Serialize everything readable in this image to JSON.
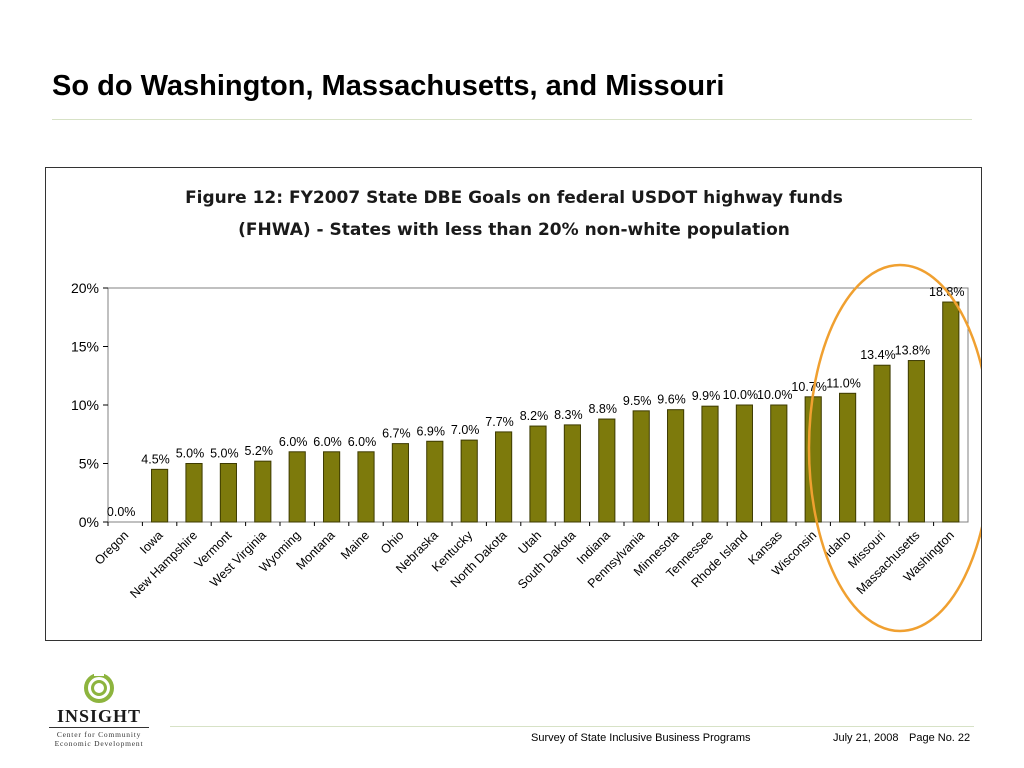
{
  "slide": {
    "title": "So do Washington, Massachusetts, and Missouri"
  },
  "colors": {
    "bar_fill": "#7d7a0c",
    "bar_stroke": "#3c3a00",
    "highlight_ellipse": "#f0a030",
    "title_rule": "#d7e2c6",
    "logo_green": "#8db43e"
  },
  "logo": {
    "name": "INSIGHT",
    "sub_line1": "Center for Community",
    "sub_line2": "Economic Development"
  },
  "footer": {
    "survey": "Survey of State Inclusive Business Programs",
    "date": "July 21, 2008",
    "page": "Page No. 22"
  },
  "chart_data": {
    "type": "bar",
    "title_line1": "Figure 12: FY2007 State DBE Goals on federal USDOT highway funds",
    "title_line2": "(FHWA) - States with less than 20% non-white population",
    "xlabel": "",
    "ylabel": "",
    "ylim": [
      0,
      20
    ],
    "yticks": [
      {
        "value": 0,
        "label": "0%"
      },
      {
        "value": 5,
        "label": "5%"
      },
      {
        "value": 10,
        "label": "10%"
      },
      {
        "value": 15,
        "label": "15%"
      },
      {
        "value": 20,
        "label": "20%"
      }
    ],
    "grid": false,
    "legend": "none",
    "categories": [
      "Oregon",
      "Iowa",
      "New Hampshire",
      "Vermont",
      "West Virginia",
      "Wyoming",
      "Montana",
      "Maine",
      "Ohio",
      "Nebraska",
      "Kentucky",
      "North Dakota",
      "Utah",
      "South Dakota",
      "Indiana",
      "Pennsylvania",
      "Minnesota",
      "Tennessee",
      "Rhode Island",
      "Kansas",
      "Wisconsin",
      "Idaho",
      "Missouri",
      "Massachusetts",
      "Washington"
    ],
    "values": [
      0.0,
      4.5,
      5.0,
      5.0,
      5.2,
      6.0,
      6.0,
      6.0,
      6.7,
      6.9,
      7.0,
      7.7,
      8.2,
      8.3,
      8.8,
      9.5,
      9.6,
      9.9,
      10.0,
      10.0,
      10.7,
      11.0,
      13.4,
      13.8,
      18.8
    ],
    "data_labels": [
      "0.0%",
      "4.5%",
      "5.0%",
      "5.0%",
      "5.2%",
      "6.0%",
      "6.0%",
      "6.0%",
      "6.7%",
      "6.9%",
      "7.0%",
      "7.7%",
      "8.2%",
      "8.3%",
      "8.8%",
      "9.5%",
      "9.6%",
      "9.9%",
      "10.0%",
      "10.0%",
      "10.7%",
      "11.0%",
      "13.4%",
      "13.8%",
      "18.8%"
    ],
    "highlighted": [
      "Missouri",
      "Massachusetts",
      "Washington"
    ]
  }
}
